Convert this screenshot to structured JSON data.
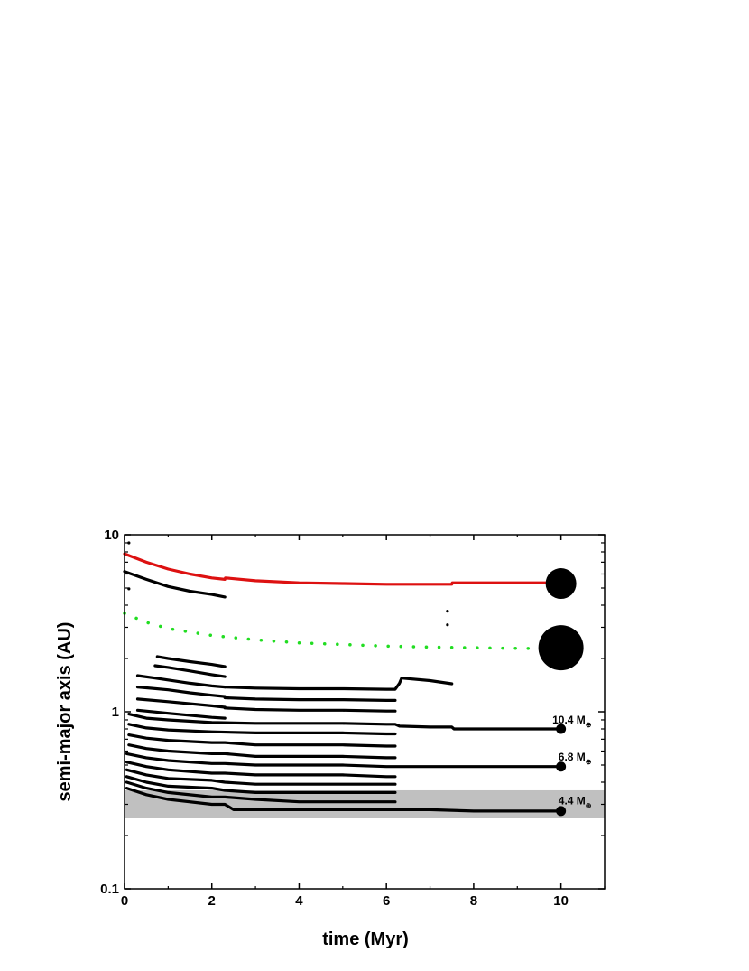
{
  "chart_data": {
    "type": "scatter",
    "title": "",
    "xlabel": "time (Myr)",
    "ylabel": "semi-major axis (AU)",
    "xlim": [
      0,
      11
    ],
    "ylim": [
      0.1,
      10
    ],
    "yscale": "log",
    "xticks": [
      0,
      2,
      4,
      6,
      8,
      10
    ],
    "yticks": [
      0.1,
      1,
      10
    ],
    "grid": false,
    "legend": "none",
    "colors": {
      "giant_outer": "#dd1111",
      "giant_inner": "#22dd22",
      "embryos": "#000000",
      "band": "#c0c0c0"
    },
    "shaded_band": {
      "y_min": 0.25,
      "y_max": 0.36,
      "x_min": 0,
      "x_max": 11
    },
    "series": [
      {
        "color": "red",
        "style": "solid",
        "points": [
          [
            0,
            7.8
          ],
          [
            0.5,
            7.0
          ],
          [
            1,
            6.4
          ],
          [
            1.5,
            6.0
          ],
          [
            2,
            5.7
          ],
          [
            2.3,
            5.6
          ],
          [
            2.31,
            5.7
          ],
          [
            3,
            5.5
          ],
          [
            4,
            5.35
          ],
          [
            5,
            5.3
          ],
          [
            6,
            5.25
          ],
          [
            7,
            5.25
          ],
          [
            7.5,
            5.25
          ],
          [
            7.51,
            5.35
          ],
          [
            8,
            5.35
          ],
          [
            9,
            5.35
          ],
          [
            10,
            5.35
          ]
        ]
      },
      {
        "color": "green",
        "style": "dotted",
        "points": [
          [
            0,
            3.6
          ],
          [
            0.5,
            3.2
          ],
          [
            1,
            2.95
          ],
          [
            2,
            2.7
          ],
          [
            3,
            2.55
          ],
          [
            4,
            2.45
          ],
          [
            5,
            2.4
          ],
          [
            6,
            2.35
          ],
          [
            7,
            2.32
          ],
          [
            8,
            2.3
          ],
          [
            9,
            2.28
          ],
          [
            10,
            2.27
          ]
        ]
      },
      {
        "color": "black",
        "style": "solid",
        "points": [
          [
            0,
            6.2
          ],
          [
            0.5,
            5.6
          ],
          [
            1,
            5.1
          ],
          [
            1.5,
            4.8
          ],
          [
            2,
            4.6
          ],
          [
            2.3,
            4.45
          ]
        ]
      },
      {
        "color": "black",
        "style": "solid",
        "points": [
          [
            0.75,
            2.05
          ],
          [
            1,
            2.0
          ],
          [
            1.5,
            1.92
          ],
          [
            2,
            1.85
          ],
          [
            2.3,
            1.8
          ]
        ]
      },
      {
        "color": "black",
        "style": "solid",
        "points": [
          [
            0.7,
            1.82
          ],
          [
            1,
            1.78
          ],
          [
            1.5,
            1.7
          ],
          [
            2,
            1.62
          ],
          [
            2.3,
            1.58
          ]
        ]
      },
      {
        "color": "black",
        "style": "solid",
        "points": [
          [
            0.3,
            1.6
          ],
          [
            0.7,
            1.55
          ],
          [
            1.5,
            1.45
          ],
          [
            2,
            1.4
          ],
          [
            2.3,
            1.38
          ]
        ]
      },
      {
        "color": "black",
        "style": "solid",
        "points": [
          [
            0.3,
            1.38
          ],
          [
            1,
            1.33
          ],
          [
            1.5,
            1.28
          ],
          [
            2,
            1.24
          ],
          [
            2.3,
            1.22
          ]
        ]
      },
      {
        "color": "black",
        "style": "solid",
        "points": [
          [
            0.3,
            1.18
          ],
          [
            1,
            1.14
          ],
          [
            2,
            1.08
          ],
          [
            2.3,
            1.06
          ]
        ]
      },
      {
        "color": "black",
        "style": "solid",
        "points": [
          [
            0.3,
            1.02
          ],
          [
            1,
            0.98
          ],
          [
            2,
            0.93
          ],
          [
            2.3,
            0.92
          ]
        ]
      },
      {
        "color": "black",
        "style": "solid",
        "points": [
          [
            2.3,
            1.38
          ],
          [
            3,
            1.36
          ],
          [
            4,
            1.35
          ],
          [
            5,
            1.35
          ],
          [
            6,
            1.34
          ],
          [
            6.2,
            1.34
          ],
          [
            6.3,
            1.45
          ],
          [
            6.35,
            1.55
          ],
          [
            7,
            1.5
          ],
          [
            7.5,
            1.44
          ]
        ]
      },
      {
        "color": "black",
        "style": "solid",
        "points": [
          [
            2.3,
            1.2
          ],
          [
            3,
            1.18
          ],
          [
            4,
            1.17
          ],
          [
            5,
            1.17
          ],
          [
            6,
            1.16
          ],
          [
            6.2,
            1.16
          ]
        ]
      },
      {
        "color": "black",
        "style": "solid",
        "points": [
          [
            2.3,
            1.05
          ],
          [
            3,
            1.03
          ],
          [
            4,
            1.02
          ],
          [
            5,
            1.02
          ],
          [
            6,
            1.01
          ],
          [
            6.2,
            1.01
          ]
        ]
      },
      {
        "color": "black",
        "style": "solid",
        "points": [
          [
            0.1,
            0.97
          ],
          [
            0.5,
            0.92
          ],
          [
            1,
            0.9
          ],
          [
            2,
            0.87
          ],
          [
            3,
            0.86
          ],
          [
            4,
            0.86
          ],
          [
            5,
            0.86
          ],
          [
            6,
            0.85
          ],
          [
            6.2,
            0.85
          ],
          [
            6.3,
            0.83
          ],
          [
            7,
            0.82
          ],
          [
            7.5,
            0.82
          ],
          [
            7.55,
            0.8
          ],
          [
            8,
            0.8
          ],
          [
            9,
            0.8
          ],
          [
            10,
            0.8
          ]
        ]
      },
      {
        "color": "black",
        "style": "solid",
        "points": [
          [
            0.1,
            0.85
          ],
          [
            0.5,
            0.81
          ],
          [
            1,
            0.79
          ],
          [
            2,
            0.77
          ],
          [
            3,
            0.76
          ],
          [
            4,
            0.76
          ],
          [
            5,
            0.76
          ],
          [
            6,
            0.75
          ],
          [
            6.2,
            0.75
          ]
        ]
      },
      {
        "color": "black",
        "style": "solid",
        "points": [
          [
            0.1,
            0.74
          ],
          [
            0.5,
            0.71
          ],
          [
            1,
            0.69
          ],
          [
            2,
            0.67
          ],
          [
            2.3,
            0.67
          ],
          [
            3,
            0.65
          ],
          [
            4,
            0.65
          ],
          [
            5,
            0.65
          ],
          [
            6,
            0.64
          ],
          [
            6.2,
            0.64
          ]
        ]
      },
      {
        "color": "black",
        "style": "solid",
        "points": [
          [
            0.1,
            0.65
          ],
          [
            0.5,
            0.62
          ],
          [
            1,
            0.6
          ],
          [
            2,
            0.58
          ],
          [
            2.3,
            0.58
          ],
          [
            3,
            0.56
          ],
          [
            4,
            0.56
          ],
          [
            5,
            0.56
          ],
          [
            6,
            0.55
          ],
          [
            6.2,
            0.55
          ]
        ]
      },
      {
        "color": "black",
        "style": "solid",
        "points": [
          [
            0.05,
            0.58
          ],
          [
            0.5,
            0.55
          ],
          [
            1,
            0.53
          ],
          [
            2,
            0.51
          ],
          [
            2.3,
            0.51
          ],
          [
            3,
            0.5
          ],
          [
            4,
            0.5
          ],
          [
            5,
            0.5
          ],
          [
            6,
            0.49
          ],
          [
            6.2,
            0.49
          ],
          [
            7,
            0.49
          ],
          [
            8,
            0.49
          ],
          [
            9,
            0.49
          ],
          [
            10,
            0.49
          ]
        ]
      },
      {
        "color": "black",
        "style": "solid",
        "points": [
          [
            0.05,
            0.52
          ],
          [
            0.5,
            0.49
          ],
          [
            1,
            0.47
          ],
          [
            2,
            0.45
          ],
          [
            2.3,
            0.45
          ],
          [
            3,
            0.44
          ],
          [
            4,
            0.44
          ],
          [
            5,
            0.44
          ],
          [
            6,
            0.43
          ],
          [
            6.2,
            0.43
          ]
        ]
      },
      {
        "color": "black",
        "style": "solid",
        "points": [
          [
            0.05,
            0.47
          ],
          [
            0.5,
            0.44
          ],
          [
            1,
            0.42
          ],
          [
            2,
            0.41
          ],
          [
            2.3,
            0.4
          ],
          [
            3,
            0.39
          ],
          [
            4,
            0.39
          ],
          [
            5,
            0.39
          ],
          [
            6,
            0.39
          ],
          [
            6.2,
            0.39
          ]
        ]
      },
      {
        "color": "black",
        "style": "solid",
        "points": [
          [
            0.05,
            0.43
          ],
          [
            0.5,
            0.4
          ],
          [
            1,
            0.38
          ],
          [
            2,
            0.37
          ],
          [
            2.3,
            0.36
          ],
          [
            3,
            0.35
          ],
          [
            4,
            0.35
          ],
          [
            5,
            0.35
          ],
          [
            6,
            0.35
          ],
          [
            6.2,
            0.35
          ]
        ]
      },
      {
        "color": "black",
        "style": "solid",
        "points": [
          [
            0.05,
            0.4
          ],
          [
            0.5,
            0.37
          ],
          [
            1,
            0.35
          ],
          [
            2,
            0.33
          ],
          [
            2.3,
            0.33
          ],
          [
            3,
            0.32
          ],
          [
            4,
            0.31
          ],
          [
            5,
            0.31
          ],
          [
            6,
            0.31
          ],
          [
            6.2,
            0.31
          ]
        ]
      },
      {
        "color": "black",
        "style": "solid",
        "points": [
          [
            0.05,
            0.37
          ],
          [
            0.5,
            0.34
          ],
          [
            1,
            0.32
          ],
          [
            2,
            0.3
          ],
          [
            2.3,
            0.3
          ],
          [
            2.5,
            0.28
          ],
          [
            3,
            0.28
          ],
          [
            4,
            0.28
          ],
          [
            5,
            0.28
          ],
          [
            6,
            0.28
          ],
          [
            6.2,
            0.28
          ],
          [
            7,
            0.28
          ],
          [
            8,
            0.275
          ],
          [
            9,
            0.275
          ],
          [
            10,
            0.275
          ]
        ]
      }
    ],
    "markers": [
      {
        "x": 10,
        "y": 5.3,
        "size": "large"
      },
      {
        "x": 10,
        "y": 2.3,
        "size": "xlarge"
      },
      {
        "x": 10,
        "y": 0.8,
        "size": "small"
      },
      {
        "x": 10,
        "y": 0.49,
        "size": "small"
      },
      {
        "x": 10,
        "y": 0.275,
        "size": "small"
      }
    ],
    "stray_points": [
      [
        7.4,
        3.7
      ],
      [
        7.4,
        3.1
      ],
      [
        0.1,
        9.0
      ],
      [
        0.1,
        4.95
      ]
    ],
    "annotations": [
      {
        "text": "10.4 M",
        "subscript": "⊕",
        "x": 10.7,
        "y": 0.86
      },
      {
        "text": "6.8 M",
        "subscript": "⊕",
        "x": 10.7,
        "y": 0.53
      },
      {
        "text": "4.4 M",
        "subscript": "⊕",
        "x": 10.7,
        "y": 0.3
      }
    ]
  }
}
